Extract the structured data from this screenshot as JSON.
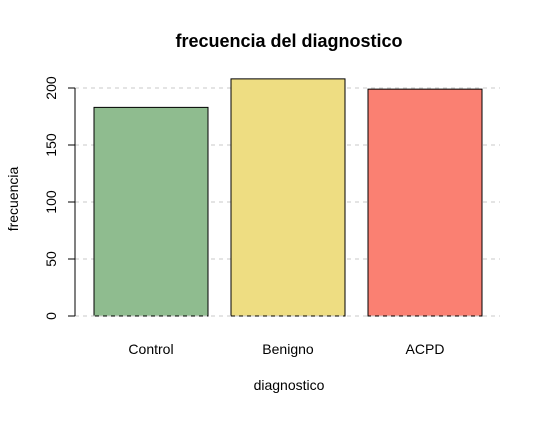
{
  "chart_data": {
    "type": "bar",
    "title": "frecuencia del diagnostico",
    "xlabel": "diagnostico",
    "ylabel": "frecuencia",
    "categories": [
      "Control",
      "Benigno",
      "ACPD"
    ],
    "values": [
      183,
      208,
      199
    ],
    "colors": [
      "#8fbc8f",
      "#eedd82",
      "#fa8072"
    ],
    "ylim": [
      0,
      210
    ],
    "yticks": [
      0,
      50,
      100,
      150,
      200
    ],
    "grid": true,
    "grid_style": "dashed horizontal",
    "legend": "none"
  }
}
